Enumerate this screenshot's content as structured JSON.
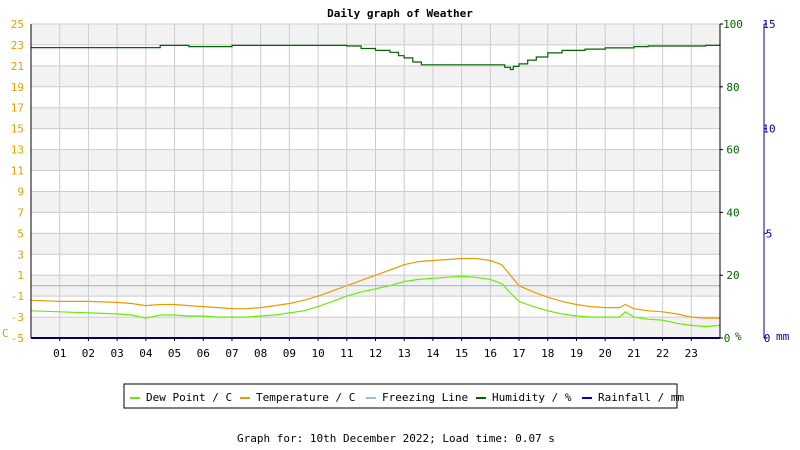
{
  "title": "Daily graph of Weather",
  "footer": "Graph for: 10th December 2022; Load time: 0.07 s",
  "axes": {
    "left_unit": "C",
    "right_unit_1": "%",
    "right_unit_2": "mm"
  },
  "colors": {
    "dew_point": "#66ee00",
    "temperature": "#ee9900",
    "freezing_line": "#99bbdd",
    "humidity": "#006400",
    "rainfall": "#0000cc",
    "left_axis": "#e0a000",
    "right_axis_1": "#006400",
    "right_axis_2": "#0000a0",
    "band": "#f2f2f2",
    "grid": "#cccccc"
  },
  "chart_data": {
    "type": "line",
    "title": "Daily graph of Weather",
    "x_ticks": [
      "01",
      "02",
      "03",
      "04",
      "05",
      "06",
      "07",
      "08",
      "09",
      "10",
      "11",
      "12",
      "13",
      "14",
      "15",
      "16",
      "17",
      "18",
      "19",
      "20",
      "21",
      "22",
      "23"
    ],
    "xlim_hours": [
      0,
      24
    ],
    "y_left": {
      "label": "C",
      "ticks": [
        -5,
        -3,
        -1,
        1,
        3,
        5,
        7,
        9,
        11,
        13,
        15,
        17,
        19,
        21,
        23,
        25
      ],
      "ylim": [
        -5,
        25
      ]
    },
    "y_right_1": {
      "label": "%",
      "ticks": [
        0,
        20,
        40,
        60,
        80,
        100
      ],
      "ylim": [
        0,
        100
      ]
    },
    "y_right_2": {
      "label": "mm",
      "ticks": [
        0,
        5,
        10,
        15
      ],
      "ylim": [
        0,
        15
      ]
    },
    "grid": true,
    "legend": [
      "Dew Point / C",
      "Temperature / C",
      "Freezing Line",
      "Humidity / %",
      "Rainfall / mm"
    ],
    "legend_position": "bottom",
    "series": [
      {
        "name": "Dew Point / C",
        "axis": "left",
        "x": [
          0,
          1,
          2,
          3,
          3.5,
          4,
          4.5,
          5,
          5.5,
          6,
          6.5,
          7,
          7.5,
          8,
          8.5,
          9,
          9.5,
          10,
          10.5,
          11,
          11.5,
          12,
          12.5,
          13,
          13.5,
          14,
          14.5,
          15,
          15.5,
          16,
          16.4,
          16.7,
          17,
          17.5,
          18,
          18.5,
          19,
          19.5,
          20,
          20.5,
          20.7,
          21,
          21.5,
          22,
          22.5,
          23,
          23.5,
          24
        ],
        "y": [
          -2.4,
          -2.5,
          -2.6,
          -2.7,
          -2.8,
          -3.1,
          -2.8,
          -2.8,
          -2.9,
          -2.9,
          -3.0,
          -3.0,
          -3.0,
          -2.9,
          -2.8,
          -2.6,
          -2.4,
          -2.0,
          -1.5,
          -1.0,
          -0.6,
          -0.3,
          0.0,
          0.4,
          0.6,
          0.7,
          0.8,
          0.9,
          0.8,
          0.6,
          0.2,
          -0.7,
          -1.5,
          -2.0,
          -2.4,
          -2.7,
          -2.9,
          -3.0,
          -3.0,
          -3.0,
          -2.5,
          -3.0,
          -3.2,
          -3.3,
          -3.6,
          -3.8,
          -3.9,
          -3.8
        ]
      },
      {
        "name": "Temperature / C",
        "axis": "left",
        "x": [
          0,
          1,
          2,
          3,
          3.5,
          4,
          4.5,
          5,
          5.5,
          6,
          6.5,
          7,
          7.5,
          8,
          8.5,
          9,
          9.5,
          10,
          10.5,
          11,
          11.5,
          12,
          12.5,
          13,
          13.5,
          14,
          14.5,
          15,
          15.5,
          16,
          16.4,
          16.7,
          17,
          17.5,
          18,
          18.5,
          19,
          19.5,
          20,
          20.5,
          20.7,
          21,
          21.5,
          22,
          22.5,
          23,
          23.5,
          24
        ],
        "y": [
          -1.4,
          -1.5,
          -1.5,
          -1.6,
          -1.7,
          -1.9,
          -1.8,
          -1.8,
          -1.9,
          -2.0,
          -2.1,
          -2.2,
          -2.2,
          -2.1,
          -1.9,
          -1.7,
          -1.4,
          -1.0,
          -0.5,
          0.0,
          0.5,
          1.0,
          1.5,
          2.0,
          2.3,
          2.4,
          2.5,
          2.6,
          2.6,
          2.4,
          2.0,
          1.0,
          0.0,
          -0.6,
          -1.1,
          -1.5,
          -1.8,
          -2.0,
          -2.1,
          -2.1,
          -1.8,
          -2.2,
          -2.4,
          -2.5,
          -2.7,
          -3.0,
          -3.1,
          -3.1
        ]
      },
      {
        "name": "Freezing Line",
        "axis": "left",
        "x": [
          0,
          24
        ],
        "y": [
          0,
          0
        ]
      },
      {
        "name": "Humidity / %",
        "axis": "right_1",
        "step": true,
        "x": [
          0,
          4.5,
          5.5,
          7,
          11,
          11.5,
          12,
          12.5,
          12.8,
          13,
          13.3,
          13.6,
          15.5,
          16,
          16.5,
          16.7,
          16.8,
          17,
          17.3,
          17.6,
          18,
          18.5,
          19.3,
          20,
          21,
          21.5,
          22.5,
          23.5,
          24
        ],
        "y": [
          92.5,
          93.2,
          92.8,
          93.2,
          93,
          92.2,
          91.6,
          91,
          89.9,
          89.2,
          87.9,
          87.0,
          87.0,
          87.0,
          86.2,
          85.5,
          86.5,
          87.3,
          88.5,
          89.5,
          90.8,
          91.6,
          92,
          92.4,
          92.8,
          93.0,
          93.0,
          93.2,
          93.8
        ]
      },
      {
        "name": "Rainfall / mm",
        "axis": "right_2",
        "x": [
          0,
          24
        ],
        "y": [
          0,
          0
        ]
      }
    ]
  }
}
